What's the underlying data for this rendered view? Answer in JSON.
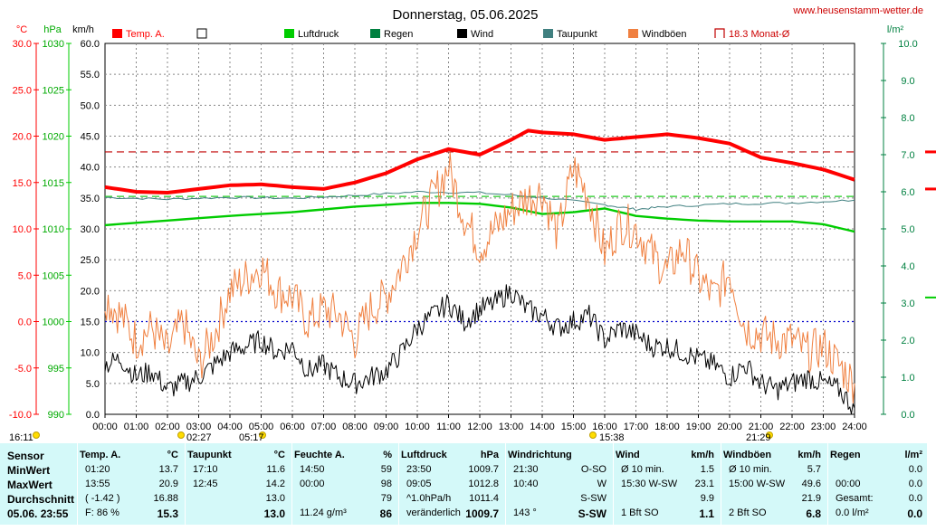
{
  "title": "Donnerstag, 05.06.2025",
  "website": "www.heusenstamm-wetter.de",
  "axis_units": {
    "temp": "°C",
    "pressure": "hPa",
    "wind": "km/h",
    "rain": "l/m²"
  },
  "colors": {
    "temp": "#ff0000",
    "pressure": "#00cc00",
    "rain": "#008040",
    "wind": "#000000",
    "dewpoint": "#408080",
    "gust": "#f08040",
    "monthavg": "#c00000",
    "humidity_line": "#0000cc"
  },
  "legend": [
    {
      "label": "Temp. A.",
      "color": "#ff0000",
      "type": "filled"
    },
    {
      "label": "",
      "color": "#000000",
      "type": "empty"
    },
    {
      "label": "Luftdruck",
      "color": "#00cc00",
      "type": "filled"
    },
    {
      "label": "Regen",
      "color": "#008040",
      "type": "filled"
    },
    {
      "label": "Wind",
      "color": "#000000",
      "type": "filled"
    },
    {
      "label": "Taupunkt",
      "color": "#408080",
      "type": "filled"
    },
    {
      "label": "Windböen",
      "color": "#f08040",
      "type": "filled"
    },
    {
      "label": "18.3 Monat-Ø",
      "color": "#c00000",
      "type": "bracket"
    }
  ],
  "sun_events": [
    "16:11",
    "02:27",
    "05:17",
    "15:38",
    "21:29"
  ],
  "chart_data": {
    "type": "line",
    "title": "Donnerstag, 05.06.2025",
    "x_ticks": [
      "00:00",
      "01:00",
      "02:00",
      "03:00",
      "04:00",
      "05:00",
      "06:00",
      "07:00",
      "08:00",
      "09:00",
      "10:00",
      "11:00",
      "12:00",
      "13:00",
      "14:00",
      "15:00",
      "16:00",
      "17:00",
      "18:00",
      "19:00",
      "20:00",
      "21:00",
      "22:00",
      "23:00",
      "24:00"
    ],
    "axes": {
      "temp_c": {
        "ticks": [
          "30.0",
          "25.0",
          "20.0",
          "15.0",
          "10.0",
          "5.0",
          "0.0",
          "-5.0",
          "-10.0"
        ],
        "range": [
          -10,
          30
        ]
      },
      "pressure_hpa": {
        "ticks": [
          "1030",
          "1025",
          "1020",
          "1015",
          "1010",
          "1005",
          "1000",
          "995",
          "990"
        ],
        "range": [
          990,
          1030
        ]
      },
      "wind_kmh": {
        "ticks": [
          "60.0",
          "55.0",
          "50.0",
          "45.0",
          "40.0",
          "35.0",
          "30.0",
          "25.0",
          "20.0",
          "15.0",
          "10.0",
          "5.0",
          "0.0"
        ],
        "range": [
          0,
          60
        ]
      },
      "rain_lm2": {
        "ticks": [
          "10.0",
          "9.0",
          "8.0",
          "7.0",
          "6.0",
          "5.0",
          "4.0",
          "3.0",
          "2.0",
          "1.0",
          "0.0"
        ],
        "range": [
          0,
          10
        ]
      }
    },
    "reference_lines": {
      "month_avg_temp_c": 18.3,
      "dewpoint_ref_c": 13.5,
      "zero_temp_c": 0
    },
    "series": [
      {
        "name": "Temp. A.",
        "unit": "°C",
        "x_hours": [
          0,
          1,
          2,
          3,
          4,
          5,
          6,
          7,
          8,
          9,
          10,
          11,
          12,
          13,
          13.55,
          14,
          15,
          16,
          17,
          18,
          19,
          20,
          21,
          22,
          23,
          24
        ],
        "values": [
          14.5,
          14.0,
          13.9,
          14.3,
          14.7,
          14.8,
          14.5,
          14.3,
          15.0,
          16.0,
          17.5,
          18.6,
          18.0,
          19.6,
          20.6,
          20.4,
          20.2,
          19.6,
          19.9,
          20.2,
          19.8,
          19.2,
          17.7,
          17.1,
          16.4,
          15.3
        ]
      },
      {
        "name": "Luftdruck",
        "unit": "hPa",
        "x_hours": [
          0,
          2,
          4,
          6,
          8,
          10,
          11,
          12,
          13,
          14,
          15,
          16,
          17,
          18,
          19,
          20,
          21,
          22,
          23,
          24
        ],
        "values": [
          1010.4,
          1010.9,
          1011.4,
          1011.8,
          1012.4,
          1012.8,
          1012.8,
          1012.7,
          1012.3,
          1011.6,
          1011.8,
          1012.2,
          1011.4,
          1011.1,
          1010.9,
          1010.8,
          1010.8,
          1010.8,
          1010.5,
          1009.7
        ]
      },
      {
        "name": "Taupunkt",
        "unit": "°C",
        "x_hours": [
          0,
          2,
          4,
          6,
          8,
          10,
          12,
          14,
          16,
          17,
          18,
          20,
          22,
          24
        ],
        "values": [
          13.4,
          13.2,
          13.4,
          13.3,
          13.6,
          14.0,
          13.9,
          13.4,
          12.6,
          12.1,
          12.4,
          12.7,
          12.8,
          13.1
        ]
      },
      {
        "name": "Wind",
        "unit": "km/h",
        "x_hours": [
          0,
          0.5,
          1,
          1.5,
          2,
          2.5,
          3,
          3.5,
          4,
          4.5,
          5,
          5.5,
          6,
          6.5,
          7,
          7.5,
          8,
          8.5,
          9,
          9.5,
          10,
          10.5,
          11,
          11.5,
          12,
          12.5,
          13,
          13.5,
          14,
          14.5,
          15,
          15.5,
          16,
          16.5,
          17,
          17.5,
          18,
          18.5,
          19,
          19.5,
          20,
          20.5,
          21,
          21.5,
          22,
          22.5,
          23,
          23.5,
          24
        ],
        "values": [
          8,
          9,
          6,
          7,
          4,
          5,
          6,
          8,
          10,
          11,
          12,
          10,
          11,
          7,
          8,
          6,
          5,
          6,
          7,
          10,
          14,
          16,
          18,
          15,
          17,
          18,
          20,
          17,
          16,
          14,
          15,
          16,
          12,
          14,
          13,
          11,
          11,
          10,
          9,
          8,
          6,
          8,
          5,
          4,
          5,
          6,
          5,
          4,
          1
        ]
      },
      {
        "name": "Windböen",
        "unit": "km/h",
        "x_hours": [
          0,
          0.5,
          1,
          1.5,
          2,
          2.5,
          3,
          3.5,
          4,
          4.5,
          5,
          5.5,
          6,
          6.5,
          7,
          7.5,
          8,
          8.5,
          9,
          9.5,
          10,
          10.5,
          11,
          11.5,
          12,
          12.5,
          13,
          13.5,
          14,
          14.5,
          15,
          15.5,
          16,
          16.5,
          17,
          17.5,
          18,
          18.5,
          19,
          19.5,
          20,
          20.5,
          21,
          21.5,
          22,
          22.5,
          23,
          23.5,
          24
        ],
        "values": [
          19,
          16,
          12,
          14,
          10,
          15,
          8,
          13,
          20,
          22,
          24,
          20,
          19,
          15,
          17,
          16,
          12,
          17,
          19,
          24,
          30,
          35,
          40,
          32,
          27,
          30,
          33,
          35,
          36,
          29,
          40,
          35,
          26,
          31,
          30,
          26,
          23,
          27,
          22,
          19,
          23,
          14,
          13,
          12,
          12,
          10,
          11,
          8,
          5
        ]
      }
    ]
  },
  "stats": {
    "row_labels": [
      "Sensor",
      "MinWert",
      "MaxWert",
      "Durchschnitt",
      "05.06. 23:55"
    ],
    "columns": [
      {
        "id": "temp",
        "header": "Temp. A.",
        "unit": "°C",
        "rows": [
          [
            "01:20",
            "13.7"
          ],
          [
            "13:55",
            "20.9"
          ],
          [
            "( -1.42 )",
            "16.88"
          ],
          [
            "F: 86 %",
            "15.3"
          ]
        ]
      },
      {
        "id": "dew",
        "header": "Taupunkt",
        "unit": "°C",
        "rows": [
          [
            "17:10",
            "11.6"
          ],
          [
            "12:45",
            "14.2"
          ],
          [
            "",
            "13.0"
          ],
          [
            "",
            "13.0"
          ]
        ]
      },
      {
        "id": "hum",
        "header": "Feuchte A.",
        "unit": "%",
        "rows": [
          [
            "14:50",
            "59"
          ],
          [
            "00:00",
            "98"
          ],
          [
            "",
            "79"
          ],
          [
            "11.24 g/m³",
            "86"
          ]
        ]
      },
      {
        "id": "press",
        "header": "Luftdruck",
        "unit": "hPa",
        "rows": [
          [
            "23:50",
            "1009.7"
          ],
          [
            "09:05",
            "1012.8"
          ],
          [
            "^1.0hPa/h",
            "1011.4"
          ],
          [
            "veränderlich",
            "1009.7"
          ]
        ]
      },
      {
        "id": "wdir",
        "header": "Windrichtung",
        "unit": "",
        "rows": [
          [
            "21:30",
            "O-SO"
          ],
          [
            "10:40",
            "W"
          ],
          [
            "",
            "S-SW"
          ],
          [
            "143 °",
            "S-SW"
          ]
        ]
      },
      {
        "id": "wind",
        "header": "Wind",
        "unit": "km/h",
        "rows": [
          [
            "Ø 10 min.",
            "1.5"
          ],
          [
            "15:30   W-SW",
            "23.1"
          ],
          [
            "",
            "9.9"
          ],
          [
            "1 Bft SO",
            "1.1"
          ]
        ]
      },
      {
        "id": "gust",
        "header": "Windböen",
        "unit": "km/h",
        "rows": [
          [
            "Ø 10 min.",
            "5.7"
          ],
          [
            "15:00   W-SW",
            "49.6"
          ],
          [
            "",
            "21.9"
          ],
          [
            "2 Bft SO",
            "6.8"
          ]
        ]
      },
      {
        "id": "rain",
        "header": "Regen",
        "unit": "l/m²",
        "rows": [
          [
            "",
            "0.0"
          ],
          [
            "00:00",
            "0.0"
          ],
          [
            "Gesamt:",
            "0.0"
          ],
          [
            "0.0 l/m²",
            "0.0"
          ]
        ]
      }
    ]
  }
}
